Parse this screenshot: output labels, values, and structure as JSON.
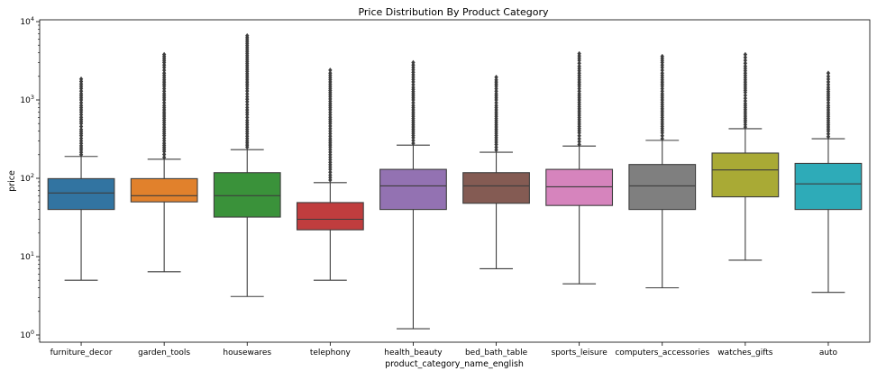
{
  "chart_data": {
    "type": "box",
    "title": "Price Distribution By Product Category",
    "xlabel": "product_category_name_english",
    "ylabel": "price",
    "yscale": "log",
    "ylim": [
      0.8,
      10000
    ],
    "y_ticks": [
      {
        "value": 1,
        "base": "10",
        "exp": "0"
      },
      {
        "value": 10,
        "base": "10",
        "exp": "1"
      },
      {
        "value": 100,
        "base": "10",
        "exp": "2"
      },
      {
        "value": 1000,
        "base": "10",
        "exp": "3"
      },
      {
        "value": 10000,
        "base": "10",
        "exp": "4"
      }
    ],
    "grid": false,
    "categories": [
      {
        "name": "furniture_decor",
        "color": "#3274a1",
        "q1": 40,
        "median": 65,
        "q3": 99,
        "whisker_low": 5,
        "whisker_high": 190,
        "outliers": [
          200,
          230,
          260,
          300,
          350,
          420,
          500,
          600,
          700,
          850,
          1000,
          1200,
          1400,
          1600,
          1850
        ]
      },
      {
        "name": "garden_tools",
        "color": "#e1812c",
        "q1": 50,
        "median": 60,
        "q3": 99,
        "whisker_low": 6.4,
        "whisker_high": 175,
        "outliers": [
          185,
          220,
          280,
          350,
          450,
          550,
          700,
          850,
          1000,
          1200,
          1500,
          1800,
          2200,
          2600,
          3000,
          3800
        ]
      },
      {
        "name": "housewares",
        "color": "#3a923a",
        "q1": 32,
        "median": 60,
        "q3": 118,
        "whisker_low": 3.1,
        "whisker_high": 232,
        "outliers": [
          250,
          300,
          370,
          450,
          550,
          650,
          800,
          950,
          1100,
          1300,
          1500,
          1800,
          2300,
          6600
        ]
      },
      {
        "name": "telephony",
        "color": "#c03d3e",
        "q1": 22,
        "median": 30,
        "q3": 49,
        "whisker_low": 5,
        "whisker_high": 88,
        "outliers": [
          95,
          110,
          130,
          160,
          200,
          250,
          320,
          400,
          500,
          600,
          750,
          900,
          1100,
          1400,
          2200,
          2400
        ]
      },
      {
        "name": "health_beauty",
        "color": "#9372b2",
        "q1": 40,
        "median": 80,
        "q3": 130,
        "whisker_low": 1.2,
        "whisker_high": 265,
        "outliers": [
          280,
          330,
          400,
          480,
          580,
          700,
          850,
          1000,
          1200,
          1450,
          1700,
          2100,
          2600,
          3000
        ]
      },
      {
        "name": "bed_bath_table",
        "color": "#845b53",
        "q1": 48,
        "median": 80,
        "q3": 118,
        "whisker_low": 7,
        "whisker_high": 215,
        "outliers": [
          230,
          270,
          330,
          400,
          480,
          580,
          700,
          850,
          1000,
          1200,
          1500,
          1800,
          1950
        ]
      },
      {
        "name": "sports_leisure",
        "color": "#d684bd",
        "q1": 45,
        "median": 78,
        "q3": 130,
        "whisker_low": 4.5,
        "whisker_high": 258,
        "outliers": [
          270,
          320,
          380,
          460,
          560,
          680,
          820,
          1000,
          1200,
          1500,
          1800,
          2200,
          2700,
          3200,
          3900
        ]
      },
      {
        "name": "computers_accessories",
        "color": "#7f7f7f",
        "q1": 40,
        "median": 80,
        "q3": 150,
        "whisker_low": 4,
        "whisker_high": 305,
        "outliers": [
          320,
          380,
          460,
          560,
          680,
          820,
          1000,
          1200,
          1500,
          1800,
          2200,
          2600,
          3000,
          3600
        ]
      },
      {
        "name": "watches_gifts",
        "color": "#a9aa35",
        "q1": 58,
        "median": 128,
        "q3": 210,
        "whisker_low": 9,
        "whisker_high": 430,
        "outliers": [
          450,
          520,
          620,
          750,
          900,
          1050,
          1250,
          1500,
          1800,
          2200,
          2700,
          3200,
          3800
        ]
      },
      {
        "name": "auto",
        "color": "#2eabb8",
        "q1": 40,
        "median": 85,
        "q3": 155,
        "whisker_low": 3.5,
        "whisker_high": 320,
        "outliers": [
          340,
          400,
          480,
          580,
          700,
          850,
          1000,
          1200,
          1450,
          1700,
          2000,
          2200
        ]
      }
    ]
  }
}
